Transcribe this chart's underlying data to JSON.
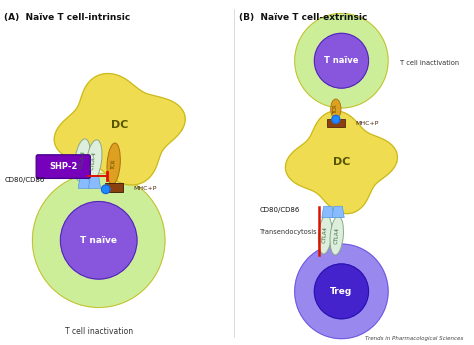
{
  "title_A": "(A)  Naïve T cell-intrinsic",
  "title_B": "(B)  Naïve T cell-extrinsic",
  "footer": "Trends in Pharmacological Sciences",
  "colors": {
    "dc_body": "#F0DC50",
    "dc_outline": "#C8B820",
    "t_naive_outer": "#CCEE99",
    "t_naive_inner": "#8855DD",
    "treg_outer": "#9988EE",
    "treg_inner": "#4422CC",
    "ctla4_fill": "#DDEEDD",
    "ctla4_outline": "#88AA88",
    "tcr_fill": "#DDA020",
    "tcr_outline": "#AA7010",
    "mhcp_fill": "#8B4010",
    "mhcp_outline": "#5A2808",
    "cd_receptor": "#88BBFF",
    "shp2_fill": "#7700BB",
    "inhibit_line": "#DD1100",
    "blue_dot": "#2288FF",
    "background": "#FFFFFF",
    "text_dark": "#111111"
  }
}
